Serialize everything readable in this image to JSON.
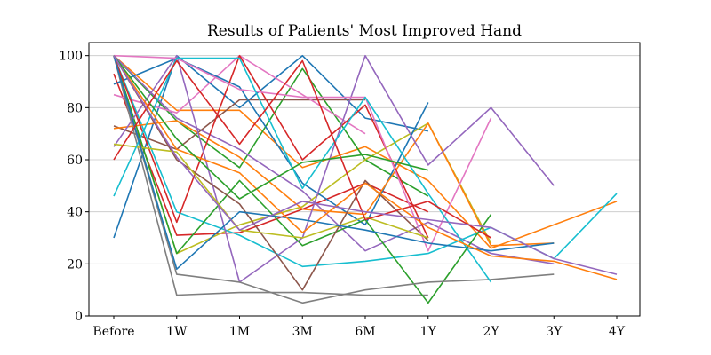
{
  "chart_data": {
    "type": "line",
    "title": "Results of Patients' Most Improved Hand",
    "xlabel": "",
    "ylabel": "",
    "categories": [
      "Before",
      "1W",
      "1M",
      "3M",
      "6M",
      "1Y",
      "2Y",
      "3Y",
      "4Y"
    ],
    "ylim": [
      0,
      105
    ],
    "yticks": [
      0,
      20,
      40,
      60,
      80,
      100
    ],
    "grid": "horizontal",
    "legend": "none",
    "palette": [
      "#1f77b4",
      "#ff7f0e",
      "#2ca02c",
      "#d62728",
      "#9467bd",
      "#8c564b",
      "#e377c2",
      "#7f7f7f",
      "#bcbd22",
      "#17becf"
    ],
    "series": [
      {
        "values": [
          30,
          100,
          80,
          100,
          76,
          71,
          null,
          null,
          null
        ]
      },
      {
        "values": [
          100,
          79,
          79,
          57,
          65,
          52,
          26,
          35,
          44
        ]
      },
      {
        "values": [
          100,
          75,
          57,
          95,
          60,
          46,
          null,
          null,
          null
        ]
      },
      {
        "values": [
          93,
          31,
          32,
          41,
          51,
          40,
          null,
          null,
          null
        ]
      },
      {
        "values": [
          100,
          76,
          64,
          48,
          25,
          36,
          24,
          20,
          null
        ]
      },
      {
        "values": [
          73,
          64,
          83,
          83,
          83,
          null,
          null,
          null,
          null
        ]
      },
      {
        "values": [
          85,
          78,
          100,
          85,
          70,
          null,
          null,
          null,
          null
        ]
      },
      {
        "values": [
          100,
          8,
          9,
          9,
          8,
          8,
          null,
          null,
          null
        ]
      },
      {
        "values": [
          100,
          24,
          35,
          42,
          60,
          74,
          28,
          null,
          null
        ]
      },
      {
        "values": [
          100,
          40,
          31,
          19,
          21,
          24,
          34,
          22,
          47
        ]
      },
      {
        "values": [
          89,
          99,
          88,
          51,
          35,
          82,
          null,
          null,
          null
        ]
      },
      {
        "values": [
          72,
          75,
          61,
          41,
          39,
          74,
          27,
          28,
          null
        ]
      },
      {
        "values": [
          100,
          24,
          52,
          27,
          37,
          5,
          39,
          null,
          null
        ]
      },
      {
        "values": [
          100,
          36,
          100,
          60,
          81,
          30,
          null,
          null,
          null
        ]
      },
      {
        "values": [
          65,
          100,
          13,
          30,
          100,
          58,
          80,
          50,
          null
        ]
      },
      {
        "values": [
          100,
          60,
          43,
          10,
          52,
          29,
          null,
          null,
          null
        ]
      },
      {
        "values": [
          100,
          99,
          87,
          84,
          84,
          25,
          76,
          null,
          null
        ]
      },
      {
        "values": [
          100,
          16,
          13,
          5,
          10,
          13,
          14,
          16,
          null
        ]
      },
      {
        "values": [
          66,
          63,
          33,
          30,
          38,
          30,
          null,
          null,
          null
        ]
      },
      {
        "values": [
          46,
          99,
          99,
          49,
          84,
          47,
          13,
          null,
          null
        ]
      },
      {
        "values": [
          100,
          18,
          40,
          37,
          33,
          28,
          25,
          28,
          null
        ]
      },
      {
        "values": [
          100,
          64,
          55,
          32,
          51,
          34,
          23,
          21,
          14
        ]
      },
      {
        "values": [
          100,
          68,
          45,
          59,
          62,
          56,
          null,
          null,
          null
        ]
      },
      {
        "values": [
          60,
          98,
          66,
          98,
          37,
          44,
          30,
          null,
          null
        ]
      },
      {
        "values": [
          100,
          61,
          33,
          44,
          40,
          37,
          34,
          22,
          16
        ]
      }
    ]
  }
}
